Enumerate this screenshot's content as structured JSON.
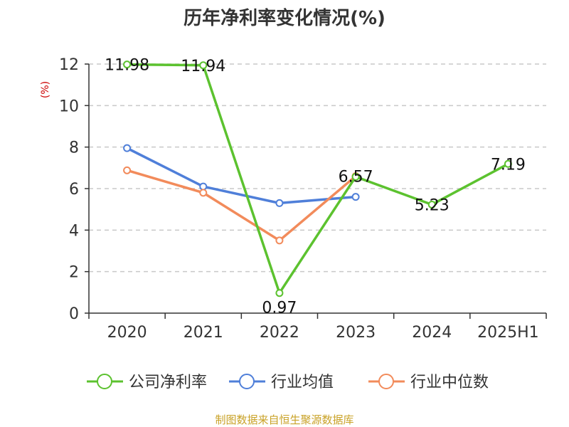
{
  "chart_data": {
    "type": "line",
    "title": "历年净利率变化情况(%)",
    "ylabel": "(%)",
    "categories": [
      "2020",
      "2021",
      "2022",
      "2023",
      "2024",
      "2025H1"
    ],
    "ylim": [
      0,
      12
    ],
    "yticks": [
      0,
      2,
      4,
      6,
      8,
      10,
      12
    ],
    "grid": true,
    "legend_position": "bottom",
    "series": [
      {
        "name": "公司净利率",
        "color": "#5cc22f",
        "values": [
          11.98,
          11.94,
          0.97,
          6.57,
          5.23,
          7.19
        ],
        "labels": [
          "11.98",
          "11.94",
          "0.97",
          "6.57",
          "5.23",
          "7.19"
        ]
      },
      {
        "name": "行业均值",
        "color": "#4f7fd9",
        "values": [
          7.95,
          6.1,
          5.3,
          5.6,
          null,
          null
        ]
      },
      {
        "name": "行业中位数",
        "color": "#f28b5b",
        "values": [
          6.88,
          5.8,
          3.5,
          6.6,
          null,
          null
        ]
      }
    ]
  },
  "footer": {
    "source": "制图数据来自恒生聚源数据库"
  }
}
